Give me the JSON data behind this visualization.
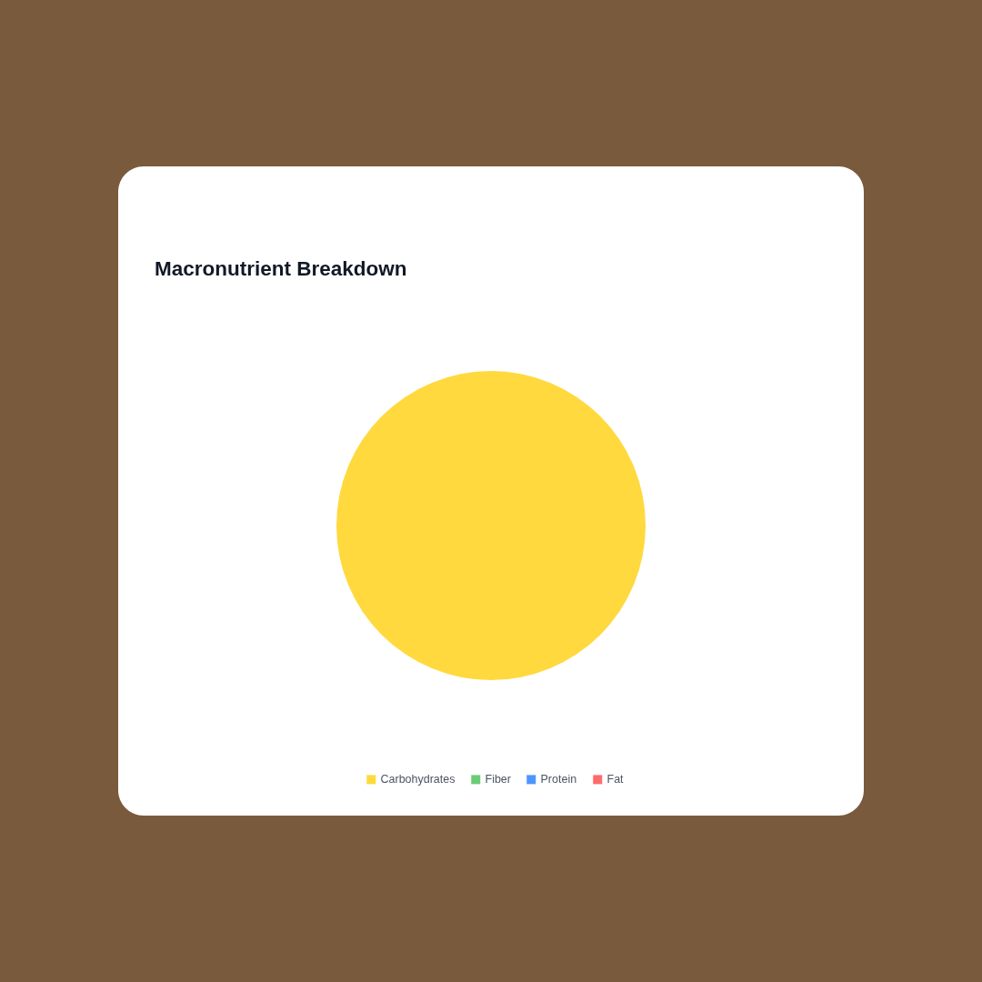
{
  "chart_data": {
    "type": "pie",
    "title": "Macronutrient Breakdown",
    "categories": [
      "Carbohydrates",
      "Fiber",
      "Protein",
      "Fat"
    ],
    "values": [
      100,
      0,
      0,
      0
    ],
    "colors": [
      "#ffd93d",
      "#6bcb77",
      "#4d96ff",
      "#ff6b6b"
    ],
    "legend": "bottom"
  }
}
